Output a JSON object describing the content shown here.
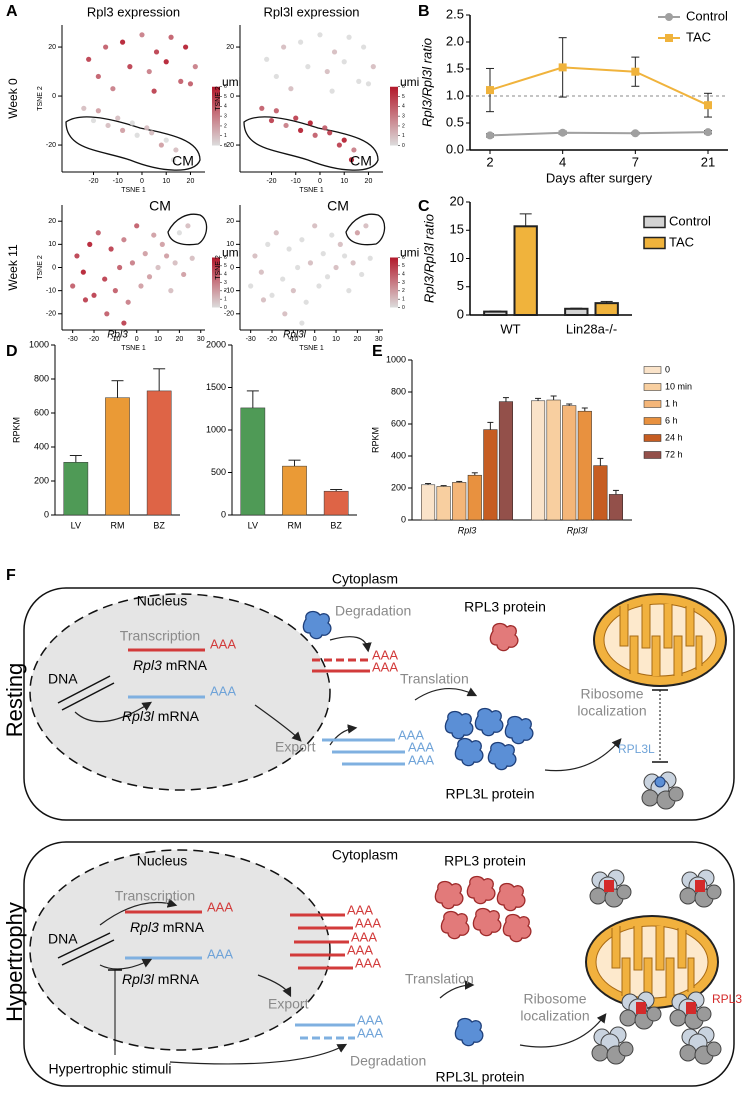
{
  "panel_labels": [
    "A",
    "B",
    "C",
    "D",
    "E",
    "F"
  ],
  "chart_data": [
    {
      "type": "scatter",
      "title": "Rpl3 expression",
      "row_label": "Week 0",
      "xlabel": "TSNE 1",
      "ylabel": "TSNE 2",
      "annotation": "CM",
      "x": [
        -22,
        -15,
        -8,
        0,
        6,
        12,
        18,
        22,
        -18,
        -5,
        3,
        10,
        16,
        -12,
        5,
        20,
        -24,
        -20,
        -14,
        -8,
        -2,
        4,
        10,
        14,
        -18,
        -10,
        -4,
        2,
        8,
        13
      ],
      "y": [
        15,
        20,
        22,
        25,
        18,
        24,
        20,
        12,
        8,
        12,
        10,
        14,
        6,
        3,
        2,
        5,
        -5,
        -10,
        -12,
        -14,
        -16,
        -15,
        -18,
        -22,
        -6,
        -9,
        -11,
        -13,
        -20,
        -26
      ],
      "values": [
        5,
        4,
        6,
        3,
        5,
        4,
        6,
        3,
        4,
        5,
        3,
        6,
        4,
        3,
        5,
        4,
        1,
        0,
        1,
        2,
        0,
        1,
        0,
        1,
        2,
        1,
        0,
        1,
        2,
        0
      ],
      "colorbar_label": "umi",
      "colorbar_ticks": [
        0,
        1,
        2,
        3,
        4,
        5,
        6
      ],
      "color_range": [
        "#dcdcdc",
        "#b2182b"
      ],
      "xlim": [
        -33,
        26
      ],
      "ylim": [
        -31,
        29
      ],
      "xticks": [
        -20,
        -10,
        0,
        10,
        20
      ],
      "yticks": [
        -20,
        0,
        20
      ]
    },
    {
      "type": "scatter",
      "title": "Rpl3l expression",
      "xlabel": "TSNE 1",
      "ylabel": "TSNE 2",
      "annotation": "CM",
      "x": [
        -22,
        -15,
        -8,
        0,
        6,
        12,
        18,
        22,
        -18,
        -5,
        3,
        10,
        16,
        -12,
        5,
        20,
        -24,
        -20,
        -14,
        -8,
        -2,
        4,
        10,
        14,
        -18,
        -10,
        -4,
        2,
        8,
        13
      ],
      "y": [
        15,
        20,
        22,
        25,
        18,
        24,
        20,
        12,
        8,
        12,
        10,
        14,
        6,
        3,
        2,
        5,
        -5,
        -10,
        -12,
        -14,
        -16,
        -15,
        -18,
        -22,
        -6,
        -9,
        -11,
        -13,
        -20,
        -26
      ],
      "values": [
        0,
        1,
        0,
        0,
        1,
        0,
        0,
        1,
        0,
        0,
        1,
        0,
        0,
        1,
        0,
        0,
        4,
        5,
        3,
        6,
        4,
        5,
        6,
        3,
        4,
        5,
        6,
        4,
        5,
        6
      ],
      "colorbar_label": "umi",
      "colorbar_ticks": [
        0,
        1,
        2,
        3,
        4,
        5,
        6
      ],
      "color_range": [
        "#dcdcdc",
        "#b2182b"
      ],
      "xlim": [
        -33,
        26
      ],
      "ylim": [
        -31,
        29
      ],
      "xticks": [
        -20,
        -10,
        0,
        10,
        20
      ],
      "yticks": [
        -20,
        0,
        20
      ]
    },
    {
      "type": "scatter",
      "row_label": "Week 11",
      "xlabel": "TSNE 1",
      "ylabel": "TSNE 2",
      "annotation": "CM",
      "x": [
        -28,
        -22,
        -18,
        -12,
        -6,
        0,
        4,
        -25,
        -15,
        -8,
        -2,
        6,
        -20,
        -10,
        -4,
        2,
        -14,
        -6,
        10,
        14,
        18,
        22,
        26,
        20,
        24,
        12,
        -30,
        -24,
        8,
        16
      ],
      "y": [
        5,
        10,
        15,
        8,
        12,
        18,
        6,
        -2,
        -5,
        0,
        2,
        -4,
        -12,
        -10,
        -15,
        -8,
        -20,
        -24,
        0,
        5,
        2,
        -3,
        4,
        15,
        18,
        10,
        -8,
        -14,
        14,
        -10
      ],
      "values": [
        5,
        6,
        4,
        5,
        3,
        4,
        2,
        6,
        5,
        4,
        3,
        2,
        5,
        4,
        3,
        2,
        4,
        5,
        1,
        2,
        1,
        2,
        1,
        0,
        1,
        2,
        4,
        5,
        2,
        1
      ],
      "colorbar_label": "umi",
      "colorbar_ticks": [
        0,
        1,
        2,
        3,
        4,
        5,
        6
      ],
      "color_range": [
        "#dcdcdc",
        "#b2182b"
      ],
      "xlim": [
        -35,
        32
      ],
      "ylim": [
        -27,
        27
      ],
      "xticks": [
        -30,
        -20,
        -10,
        0,
        10,
        20,
        30
      ],
      "yticks": [
        -20,
        -10,
        0,
        10,
        20
      ]
    },
    {
      "type": "scatter",
      "xlabel": "TSNE 1",
      "ylabel": "TSNE 2",
      "annotation": "CM",
      "x": [
        -28,
        -22,
        -18,
        -12,
        -6,
        0,
        4,
        -25,
        -15,
        -8,
        -2,
        6,
        -20,
        -10,
        -4,
        2,
        -14,
        -6,
        10,
        14,
        18,
        22,
        26,
        20,
        24,
        12,
        -30,
        -24,
        8,
        16
      ],
      "y": [
        5,
        10,
        15,
        8,
        12,
        18,
        6,
        -2,
        -5,
        0,
        2,
        -4,
        -12,
        -10,
        -15,
        -8,
        -20,
        -24,
        0,
        5,
        2,
        -3,
        4,
        15,
        18,
        10,
        -8,
        -14,
        14,
        -10
      ],
      "values": [
        1,
        0,
        1,
        0,
        0,
        1,
        0,
        1,
        0,
        0,
        1,
        0,
        0,
        1,
        0,
        0,
        1,
        0,
        1,
        0,
        1,
        0,
        0,
        2,
        1,
        1,
        0,
        1,
        0,
        0
      ],
      "colorbar_label": "umi",
      "colorbar_ticks": [
        0,
        1,
        2,
        3,
        4,
        5,
        6
      ],
      "color_range": [
        "#dcdcdc",
        "#b2182b"
      ],
      "xlim": [
        -35,
        32
      ],
      "ylim": [
        -27,
        27
      ],
      "xticks": [
        -30,
        -20,
        -10,
        0,
        10,
        20,
        30
      ],
      "yticks": [
        -20,
        -10,
        0,
        10,
        20
      ]
    },
    {
      "type": "line",
      "ylabel": "Rpl3/Rpl3l ratio",
      "xlabel": "Days after surgery",
      "categories": [
        "2",
        "4",
        "7",
        "21"
      ],
      "series": [
        {
          "name": "Control",
          "color": "#a0a0a0",
          "marker": "circle",
          "values": [
            0.27,
            0.32,
            0.31,
            0.33
          ],
          "errors": [
            0.03,
            0.03,
            0.02,
            0.03
          ]
        },
        {
          "name": "TAC",
          "color": "#f0b33c",
          "marker": "square",
          "values": [
            1.11,
            1.53,
            1.45,
            0.83
          ],
          "errors": [
            0.4,
            0.55,
            0.27,
            0.22
          ]
        }
      ],
      "reference_line": 1,
      "legend": "upper right",
      "ylim": [
        0,
        2.5
      ],
      "yticks": [
        {
          "value": 0,
          "label": "0.0"
        },
        {
          "value": 0.5,
          "label": "0.5"
        },
        {
          "value": 1,
          "label": "1.0"
        },
        {
          "value": 1.5,
          "label": "1.5"
        },
        {
          "value": 2,
          "label": "2.0"
        },
        {
          "value": 2.5,
          "label": "2.5"
        }
      ]
    },
    {
      "type": "grouped-bar",
      "ylabel": "Rpl3/Rpl3l ratio",
      "categories": [
        "WT",
        "Lin28a-/-"
      ],
      "series": [
        {
          "name": "Control",
          "color": "#d3d3d3",
          "values": [
            0.6,
            1.1
          ],
          "errors": [
            0.1,
            0.1
          ]
        },
        {
          "name": "TAC",
          "color": "#f0b33c",
          "values": [
            15.7,
            2.1
          ],
          "errors": [
            2.2,
            0.3
          ]
        }
      ],
      "legend": "right",
      "ylim": [
        0,
        20
      ],
      "yticks": [
        0,
        5,
        10,
        15,
        20
      ]
    },
    {
      "type": "bar",
      "title": "Rpl3",
      "ylabel": "RPKM",
      "categories": [
        "LV",
        "RM",
        "BZ"
      ],
      "colors": [
        "#4f9a56",
        "#ea9a36",
        "#de6446"
      ],
      "values": [
        310,
        690,
        730
      ],
      "errors": [
        40,
        100,
        130
      ],
      "ylim": [
        0,
        1000
      ],
      "yticks": [
        0,
        200,
        400,
        600,
        800,
        1000
      ]
    },
    {
      "type": "bar",
      "title": "Rpl3l",
      "categories": [
        "LV",
        "RM",
        "BZ"
      ],
      "colors": [
        "#4f9a56",
        "#ea9a36",
        "#de6446"
      ],
      "values": [
        1260,
        575,
        280
      ],
      "errors": [
        200,
        70,
        20
      ],
      "ylim": [
        0,
        2000
      ],
      "yticks": [
        0,
        500,
        1000,
        1500,
        2000
      ]
    },
    {
      "type": "grouped-bar",
      "ylabel": "RPKM",
      "categories": [
        "Rpl3",
        "Rpl3l"
      ],
      "series": [
        {
          "name": "0",
          "color": "#fae3c9",
          "values": [
            220,
            745
          ],
          "errors": [
            8,
            15
          ]
        },
        {
          "name": "10 min",
          "color": "#f8cfa0",
          "values": [
            210,
            750
          ],
          "errors": [
            5,
            25
          ]
        },
        {
          "name": "1 h",
          "color": "#f4b679",
          "values": [
            235,
            715
          ],
          "errors": [
            6,
            10
          ]
        },
        {
          "name": "6 h",
          "color": "#e8913f",
          "values": [
            280,
            680
          ],
          "errors": [
            15,
            20
          ]
        },
        {
          "name": "24 h",
          "color": "#c65d22",
          "values": [
            565,
            340
          ],
          "errors": [
            45,
            45
          ]
        },
        {
          "name": "72 h",
          "color": "#93504a",
          "values": [
            740,
            160
          ],
          "errors": [
            25,
            25
          ]
        }
      ],
      "legend": "right",
      "ylim": [
        0,
        1000
      ],
      "yticks": [
        0,
        200,
        400,
        600,
        800,
        1000
      ]
    }
  ],
  "diagram": {
    "resting": {
      "state": "Resting",
      "cytoplasm": "Cytoplasm",
      "nucleus": "Nucleus",
      "transcription": "Transcription",
      "dna": "DNA",
      "rpl3_mrna": {
        "gene": "Rpl3",
        "suffix": "mRNA"
      },
      "rpl3l_mrna": {
        "gene": "Rpl3l",
        "suffix": "mRNA"
      },
      "export": "Export",
      "degradation": "Degradation",
      "translation": "Translation",
      "rpl3_protein": "RPL3 protein",
      "rpl3l_protein": "RPL3L protein",
      "ribosome_localization": [
        "Ribosome",
        "localization"
      ],
      "ribosome_label": "RPL3L",
      "poly_a": [
        "AAA",
        "AAA",
        "AAA",
        "AAA",
        "AAA",
        "AAA",
        "AAA"
      ]
    },
    "hypertrophy": {
      "state": "Hypertrophy",
      "cytoplasm": "Cytoplasm",
      "nucleus": "Nucleus",
      "transcription": "Transcription",
      "dna": "DNA",
      "rpl3_mrna": {
        "gene": "Rpl3",
        "suffix": "mRNA"
      },
      "rpl3l_mrna": {
        "gene": "Rpl3l",
        "suffix": "mRNA"
      },
      "export": "Export",
      "degradation": "Degradation",
      "translation": "Translation",
      "rpl3_protein": "RPL3 protein",
      "rpl3l_protein": "RPL3L protein",
      "ribosome_localization": [
        "Ribosome",
        "localization"
      ],
      "ribosome_label": "RPL3",
      "stimuli": "Hypertrophic stimuli",
      "poly_a": [
        "AAA",
        "AAA",
        "AAA",
        "AAA",
        "AAA",
        "AAA",
        "AAA",
        "AAA",
        "AAA"
      ]
    }
  }
}
